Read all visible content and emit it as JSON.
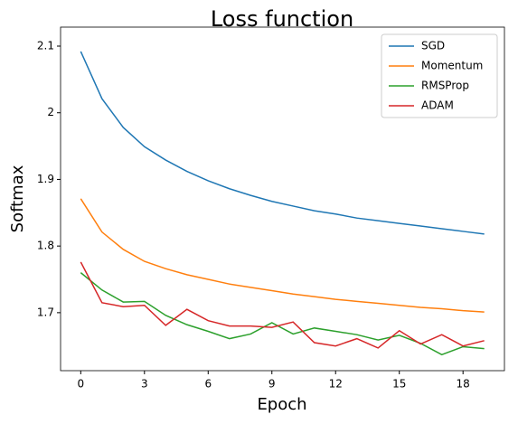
{
  "chart_data": {
    "type": "line",
    "title": "Loss function",
    "x_label": "Epoch",
    "y_label": "Softmax",
    "x": [
      0,
      1,
      2,
      3,
      4,
      5,
      6,
      7,
      8,
      9,
      10,
      11,
      12,
      13,
      14,
      15,
      16,
      17,
      18,
      19
    ],
    "series": [
      {
        "name": "SGD",
        "color": "#1f77b4",
        "values": [
          2.092,
          2.021,
          1.978,
          1.949,
          1.929,
          1.912,
          1.898,
          1.886,
          1.876,
          1.867,
          1.86,
          1.853,
          1.848,
          1.842,
          1.838,
          1.834,
          1.83,
          1.826,
          1.822,
          1.818
        ]
      },
      {
        "name": "Momentum",
        "color": "#ff7f0e",
        "values": [
          1.871,
          1.821,
          1.795,
          1.777,
          1.766,
          1.757,
          1.75,
          1.743,
          1.738,
          1.733,
          1.728,
          1.724,
          1.72,
          1.717,
          1.714,
          1.711,
          1.708,
          1.706,
          1.703,
          1.701
        ]
      },
      {
        "name": "RMSProp",
        "color": "#2ca02c",
        "values": [
          1.76,
          1.734,
          1.716,
          1.717,
          1.696,
          1.682,
          1.672,
          1.661,
          1.668,
          1.685,
          1.668,
          1.677,
          1.672,
          1.667,
          1.659,
          1.666,
          1.654,
          1.637,
          1.649,
          1.646
        ]
      },
      {
        "name": "ADAM",
        "color": "#d62728",
        "values": [
          1.776,
          1.715,
          1.709,
          1.711,
          1.681,
          1.705,
          1.688,
          1.68,
          1.68,
          1.678,
          1.686,
          1.655,
          1.65,
          1.661,
          1.647,
          1.673,
          1.653,
          1.667,
          1.65,
          1.658
        ]
      }
    ],
    "xlim": [
      -0.95,
      19.95
    ],
    "xticks": [
      0,
      3,
      6,
      9,
      12,
      15,
      18
    ],
    "ylim": [
      1.613,
      2.1285
    ],
    "yticks": [
      1.7,
      1.8,
      1.9,
      2.0,
      2.1
    ],
    "legend": "upper right"
  }
}
